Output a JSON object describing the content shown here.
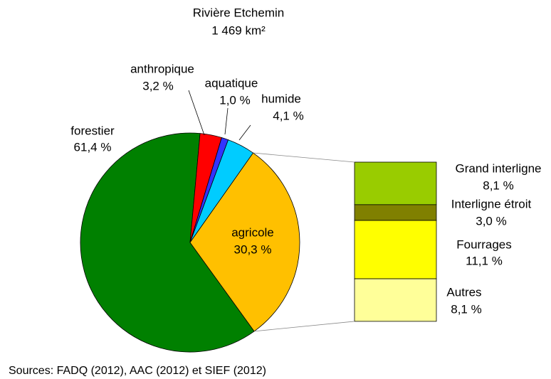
{
  "chart_data": {
    "type": "pie",
    "title": "Rivière Etchemin",
    "subtitle": "1 469 km²",
    "categories": [
      "forestier",
      "anthropique",
      "aquatique",
      "humide",
      "agricole"
    ],
    "values": [
      61.4,
      3.2,
      1.0,
      4.1,
      30.3
    ],
    "value_labels": [
      "61,4 %",
      "3,2 %",
      "1,0 %",
      "4,1 %",
      "30,3 %"
    ],
    "colors": [
      "#008000",
      "#ff0000",
      "#3333ff",
      "#00ccff",
      "#ffc000"
    ],
    "breakdown": {
      "categories": [
        "Grand interligne",
        "Interligne étroit",
        "Fourrages",
        "Autres"
      ],
      "values": [
        8.1,
        3.0,
        11.1,
        8.1
      ],
      "value_labels": [
        "8,1 %",
        "3,0 %",
        "11,1 %",
        "8,1 %"
      ],
      "colors": [
        "#99cc00",
        "#808000",
        "#ffff00",
        "#ffff99"
      ]
    },
    "source": "Sources: FADQ (2012), AAC (2012) et SIEF (2012)"
  }
}
